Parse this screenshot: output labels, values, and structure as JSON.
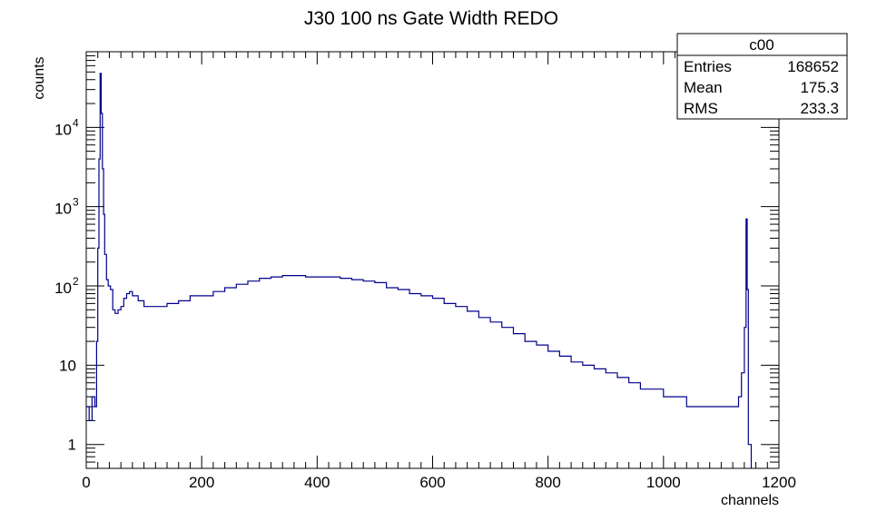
{
  "chart_data": {
    "type": "line",
    "title": "J30 100 ns Gate Width REDO",
    "xlabel": "channels",
    "ylabel": "counts",
    "xlim": [
      0,
      1200
    ],
    "ylim": [
      0.5,
      90000
    ],
    "yscale": "log",
    "grid": false,
    "line_color": "#00008b",
    "x_ticks": [
      "0",
      "200",
      "400",
      "600",
      "800",
      "1000",
      "1200"
    ],
    "y_ticks": [
      {
        "value": 1,
        "base": "1",
        "exp": ""
      },
      {
        "value": 10,
        "base": "10",
        "exp": ""
      },
      {
        "value": 100,
        "base": "10",
        "exp": "2"
      },
      {
        "value": 1000,
        "base": "10",
        "exp": "3"
      },
      {
        "value": 10000,
        "base": "10",
        "exp": "4"
      }
    ],
    "series": [
      {
        "x": [
          0,
          5,
          10,
          15,
          18,
          20,
          22,
          24,
          26,
          28,
          30,
          32,
          35,
          38,
          42,
          46,
          50,
          55,
          60,
          65,
          70,
          75,
          80,
          90,
          100,
          110,
          120,
          140,
          160,
          180,
          200,
          220,
          240,
          260,
          280,
          300,
          320,
          340,
          360,
          380,
          400,
          420,
          440,
          460,
          480,
          500,
          520,
          540,
          560,
          580,
          600,
          620,
          640,
          660,
          680,
          700,
          720,
          740,
          760,
          780,
          800,
          820,
          840,
          860,
          880,
          900,
          920,
          940,
          960,
          980,
          1000,
          1020,
          1040,
          1060,
          1080,
          1100,
          1110,
          1120,
          1130,
          1135,
          1140,
          1143,
          1145,
          1147,
          1150,
          1152
        ],
        "y": [
          3,
          2,
          4,
          3,
          20,
          300,
          4000,
          48000,
          15000,
          3000,
          800,
          250,
          120,
          100,
          90,
          50,
          45,
          50,
          55,
          70,
          80,
          85,
          75,
          65,
          55,
          55,
          55,
          60,
          65,
          75,
          75,
          85,
          95,
          105,
          115,
          125,
          130,
          135,
          135,
          130,
          130,
          130,
          125,
          120,
          115,
          110,
          95,
          90,
          80,
          75,
          70,
          60,
          55,
          48,
          40,
          35,
          30,
          25,
          20,
          18,
          15,
          13,
          11,
          10,
          9,
          8,
          7,
          6,
          5,
          5,
          4,
          4,
          3,
          3,
          3,
          3,
          3,
          3,
          4,
          8,
          30,
          700,
          90,
          1,
          1,
          0.5
        ]
      }
    ]
  },
  "stats_box": {
    "name": "c00",
    "rows": [
      {
        "label": "Entries",
        "value": "168652"
      },
      {
        "label": "Mean",
        "value": "175.3"
      },
      {
        "label": "RMS",
        "value": "233.3"
      }
    ]
  }
}
